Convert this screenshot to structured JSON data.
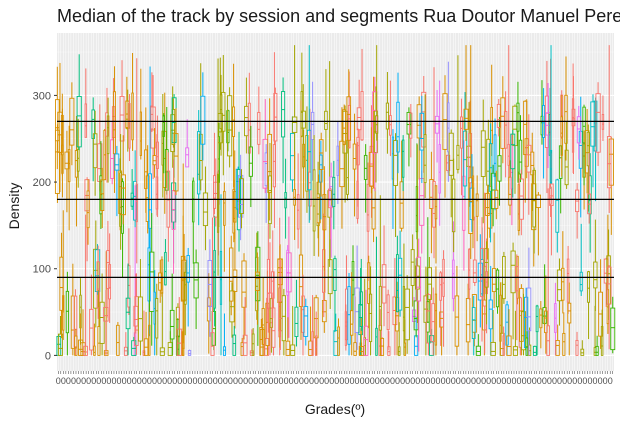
{
  "chart_data": {
    "type": "boxplot",
    "title": "Median of the track by session and segments Rua Doutor Manuel Pere",
    "xlabel": "Grades(º)",
    "ylabel": "Density",
    "ylim": [
      -18,
      372
    ],
    "y_ticks": [
      0,
      100,
      200,
      300
    ],
    "y_tick_labels": [
      "0",
      "100",
      "200",
      "300"
    ],
    "x_tick_label_sample": "0",
    "grid": "on",
    "background": "#ebebeb",
    "hlines": [
      90,
      180,
      270
    ],
    "hline_color": "#000000",
    "series_colors": [
      "#F8766D",
      "#D89000",
      "#A3A500",
      "#39B600",
      "#00BF7D",
      "#00BFC4",
      "#00B0F6",
      "#9590FF",
      "#E76BF3",
      "#FF62BC"
    ],
    "n_categories": 220,
    "legend": "none"
  }
}
